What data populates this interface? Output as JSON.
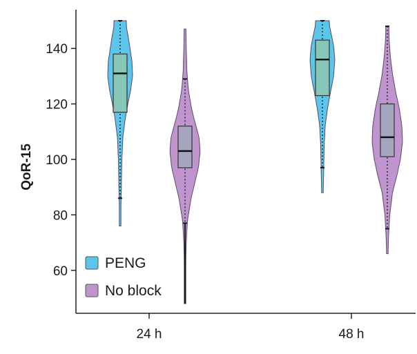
{
  "chart_data": {
    "type": "violin",
    "title": "",
    "xlabel": "",
    "ylabel": "QoR-15",
    "categories": [
      "24 h",
      "48 h"
    ],
    "ylim": [
      48,
      150
    ],
    "yticks": [
      60,
      80,
      100,
      120,
      140
    ],
    "grid": false,
    "legend": {
      "placement": "bottom-left"
    },
    "series": [
      {
        "name": "PENG",
        "color": "#5bc5ea",
        "box_color": "#86c7b8",
        "groups": [
          {
            "category": "24 h",
            "min": 76,
            "whisker_low": 86,
            "q1": 117,
            "median": 131,
            "q3": 138,
            "whisker_high": 150,
            "max": 150,
            "density": [
              [
                76,
                0.04
              ],
              [
                82,
                0.06
              ],
              [
                90,
                0.1
              ],
              [
                100,
                0.14
              ],
              [
                108,
                0.22
              ],
              [
                115,
                0.42
              ],
              [
                120,
                0.62
              ],
              [
                125,
                0.85
              ],
              [
                130,
                1.0
              ],
              [
                135,
                0.96
              ],
              [
                140,
                0.8
              ],
              [
                145,
                0.62
              ],
              [
                148,
                0.5
              ],
              [
                150,
                0.5
              ]
            ]
          },
          {
            "category": "48 h",
            "min": 88,
            "whisker_low": 97,
            "q1": 123,
            "median": 136,
            "q3": 143,
            "whisker_high": 150,
            "max": 150,
            "density": [
              [
                88,
                0.06
              ],
              [
                95,
                0.1
              ],
              [
                105,
                0.14
              ],
              [
                112,
                0.22
              ],
              [
                118,
                0.4
              ],
              [
                124,
                0.64
              ],
              [
                130,
                0.9
              ],
              [
                136,
                1.0
              ],
              [
                141,
                0.9
              ],
              [
                145,
                0.72
              ],
              [
                148,
                0.58
              ],
              [
                150,
                0.55
              ]
            ]
          }
        ]
      },
      {
        "name": "No block",
        "color": "#bf94cf",
        "box_color": "#a6a6c0",
        "groups": [
          {
            "category": "24 h",
            "min": 48,
            "whisker_low": 77,
            "q1": 97,
            "median": 103,
            "q3": 112,
            "whisker_high": 129,
            "max": 147,
            "density": [
              [
                48,
                0.02
              ],
              [
                60,
                0.04
              ],
              [
                70,
                0.08
              ],
              [
                78,
                0.16
              ],
              [
                86,
                0.4
              ],
              [
                92,
                0.66
              ],
              [
                97,
                0.88
              ],
              [
                103,
                1.0
              ],
              [
                108,
                0.92
              ],
              [
                112,
                0.72
              ],
              [
                118,
                0.44
              ],
              [
                125,
                0.22
              ],
              [
                132,
                0.12
              ],
              [
                140,
                0.08
              ],
              [
                147,
                0.06
              ]
            ]
          },
          {
            "category": "48 h",
            "min": 66,
            "whisker_low": 75,
            "q1": 101,
            "median": 108,
            "q3": 120,
            "whisker_high": 148,
            "max": 148,
            "density": [
              [
                66,
                0.04
              ],
              [
                72,
                0.08
              ],
              [
                80,
                0.16
              ],
              [
                88,
                0.34
              ],
              [
                94,
                0.62
              ],
              [
                100,
                0.86
              ],
              [
                106,
                1.0
              ],
              [
                112,
                0.96
              ],
              [
                118,
                0.8
              ],
              [
                124,
                0.56
              ],
              [
                130,
                0.36
              ],
              [
                137,
                0.2
              ],
              [
                143,
                0.12
              ],
              [
                148,
                0.1
              ]
            ]
          }
        ]
      }
    ]
  }
}
